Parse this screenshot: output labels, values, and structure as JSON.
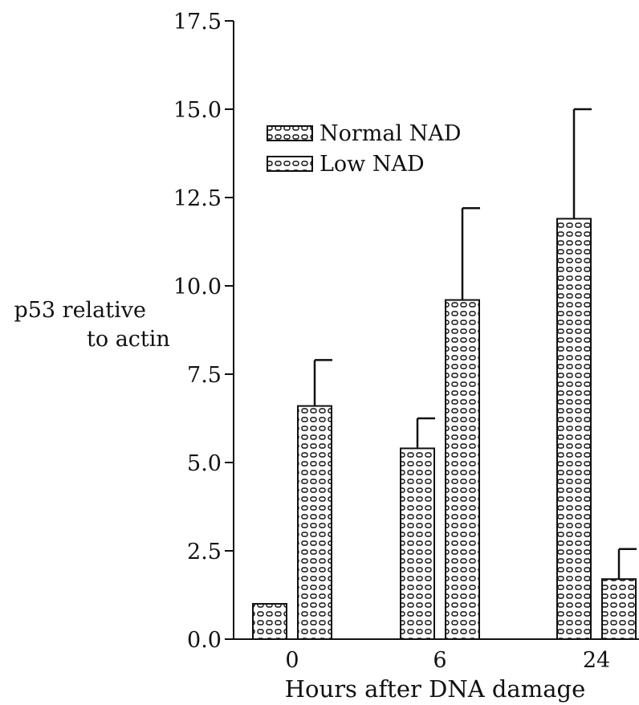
{
  "chart_data": {
    "type": "bar",
    "title": "",
    "xlabel": "Hours after DNA damage",
    "ylabel": [
      "p53 relative",
      "to actin"
    ],
    "categories": [
      "0",
      "6",
      "24"
    ],
    "ylim": [
      0,
      17.5
    ],
    "yticks": [
      "0.0",
      "2.5",
      "5.0",
      "7.5",
      "10.0",
      "12.5",
      "15.0",
      "17.5"
    ],
    "series": [
      {
        "name": "Normal NAD",
        "values": [
          1.0,
          5.4,
          11.9
        ],
        "errors": [
          0.0,
          0.85,
          3.1
        ]
      },
      {
        "name": "Low NAD",
        "values": [
          6.6,
          9.6,
          1.7
        ],
        "errors": [
          1.3,
          2.6,
          0.85
        ]
      }
    ],
    "grid": false,
    "legend_position": "top-left",
    "colors": {
      "ink": "#111111",
      "background": "#ffffff"
    }
  }
}
